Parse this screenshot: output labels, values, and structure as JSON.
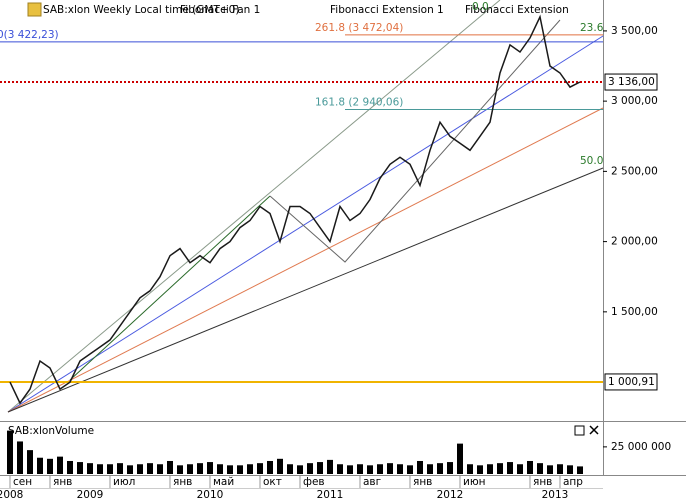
{
  "chart_data": [
    {
      "type": "line",
      "title": "SAB:xlon Weekly Local time (GMT+0)",
      "toolbar_items": [
        "Fibonacci Fan 1",
        "Fibonacci Extension 1",
        "Fibonacci Extension"
      ],
      "color": "#1a1a1a",
      "x": [
        0,
        1,
        2,
        3,
        4,
        5,
        6,
        7,
        8,
        9,
        10,
        11,
        12,
        13,
        14,
        15,
        16,
        17,
        18,
        19,
        20,
        21,
        22,
        23,
        24,
        25,
        26,
        27,
        28,
        29,
        30,
        31,
        32,
        33,
        34,
        35,
        36,
        37,
        38,
        39,
        40,
        41,
        42,
        43,
        44,
        45,
        46,
        47,
        48,
        49,
        50,
        51,
        52,
        53,
        54,
        55,
        56,
        57
      ],
      "values": [
        1000,
        850,
        950,
        1150,
        1100,
        950,
        1000,
        1150,
        1200,
        1250,
        1300,
        1400,
        1500,
        1600,
        1650,
        1750,
        1900,
        1950,
        1850,
        1900,
        1850,
        1950,
        2000,
        2100,
        2150,
        2250,
        2200,
        2000,
        2250,
        2250,
        2200,
        2100,
        2000,
        2250,
        2150,
        2200,
        2300,
        2450,
        2550,
        2600,
        2550,
        2400,
        2650,
        2850,
        2750,
        2700,
        2650,
        2750,
        2850,
        3200,
        3400,
        3350,
        3450,
        3600,
        3250,
        3200,
        3100,
        3136
      ],
      "xlim": [
        -1,
        59.3
      ],
      "ylim": [
        730,
        3720
      ],
      "yticks": [
        {
          "value": 1500,
          "label": "1 500,00"
        },
        {
          "value": 2000,
          "label": "2 000,00"
        },
        {
          "value": 2500,
          "label": "2 500,00"
        },
        {
          "value": 3000,
          "label": "3 000,00"
        },
        {
          "value": 3500,
          "label": "3 500,00"
        }
      ],
      "fib_levels": [
        {
          "value": 3422.23,
          "label": "0(3 422,23)",
          "color": "#3a4fd8"
        },
        {
          "value": 3472.04,
          "label": "261.8 (3 472,04)",
          "color": "#e07040"
        },
        {
          "value": 2940.06,
          "label": "161.8 (2 940,06)",
          "color": "#4a9a9a"
        }
      ],
      "fan_labels": [
        "0.0",
        "23.6",
        "50.0"
      ],
      "price_markers": [
        {
          "value": 3136,
          "label": "3 136,00",
          "color": "#cc0000"
        },
        {
          "value": 1000.91,
          "label": "1 000,91",
          "color": "#f0b400"
        }
      ]
    },
    {
      "type": "bar",
      "title": "SAB:xlonVolume",
      "color": "#000000",
      "x": [
        0,
        1,
        2,
        3,
        4,
        5,
        6,
        7,
        8,
        9,
        10,
        11,
        12,
        13,
        14,
        15,
        16,
        17,
        18,
        19,
        20,
        21,
        22,
        23,
        24,
        25,
        26,
        27,
        28,
        29,
        30,
        31,
        32,
        33,
        34,
        35,
        36,
        37,
        38,
        39,
        40,
        41,
        42,
        43,
        44,
        45,
        46,
        47,
        48,
        49,
        50,
        51,
        52,
        53,
        54,
        55,
        56,
        57
      ],
      "values": [
        40000000,
        30000000,
        22000000,
        15000000,
        14000000,
        16000000,
        12000000,
        11000000,
        10000000,
        9000000,
        9000000,
        10000000,
        8000000,
        9000000,
        10000000,
        9000000,
        12000000,
        8000000,
        9000000,
        10000000,
        11000000,
        9000000,
        8000000,
        8000000,
        9000000,
        10000000,
        12000000,
        14000000,
        9000000,
        8000000,
        10000000,
        11000000,
        13000000,
        9000000,
        8000000,
        9000000,
        8000000,
        9000000,
        10000000,
        9000000,
        8000000,
        12000000,
        9000000,
        10000000,
        11000000,
        28000000,
        9000000,
        8000000,
        9000000,
        10000000,
        11000000,
        9000000,
        12000000,
        10000000,
        8000000,
        9000000,
        8000000,
        7000000
      ],
      "xlim": [
        -1,
        59.3
      ],
      "ylim": [
        0,
        47000000
      ],
      "yticks": [
        {
          "value": 25000000,
          "label": "25 000 000"
        }
      ],
      "xticks": [
        {
          "value": 0,
          "label": "сен"
        },
        {
          "value": 4,
          "label": "янв"
        },
        {
          "value": 10,
          "label": "июл"
        },
        {
          "value": 16,
          "label": "янв"
        },
        {
          "value": 20,
          "label": "май"
        },
        {
          "value": 25,
          "label": "окт"
        },
        {
          "value": 29,
          "label": "фев"
        },
        {
          "value": 35,
          "label": "авг"
        },
        {
          "value": 40,
          "label": "янв"
        },
        {
          "value": 45,
          "label": "июн"
        },
        {
          "value": 52,
          "label": "янв"
        },
        {
          "value": 55,
          "label": "апр"
        }
      ],
      "year_ticks": [
        {
          "value": 0,
          "label": "2008"
        },
        {
          "value": 8,
          "label": "2009"
        },
        {
          "value": 20,
          "label": "2010"
        },
        {
          "value": 32,
          "label": "2011"
        },
        {
          "value": 44,
          "label": "2012"
        },
        {
          "value": 54.5,
          "label": "2013"
        }
      ]
    }
  ]
}
